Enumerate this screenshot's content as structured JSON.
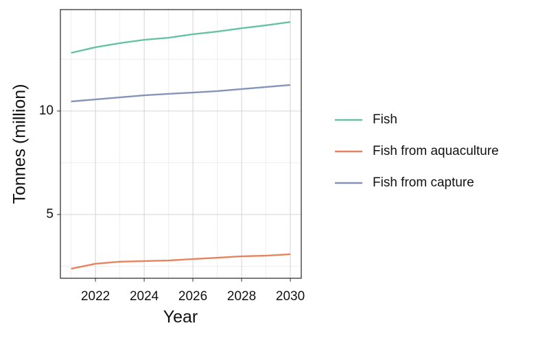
{
  "chart_data": {
    "type": "line",
    "x_label": "Year",
    "y_label": "Tonnes (million)",
    "x": [
      2021,
      2022,
      2023,
      2024,
      2025,
      2026,
      2027,
      2028,
      2029,
      2030
    ],
    "series": [
      {
        "name": "Fish",
        "color": "#66c2a5",
        "values": [
          12.81,
          13.08,
          13.28,
          13.44,
          13.54,
          13.71,
          13.84,
          14.0,
          14.14,
          14.3
        ]
      },
      {
        "name": "Fish from aquaculture",
        "color": "#e8825c",
        "values": [
          2.38,
          2.62,
          2.72,
          2.75,
          2.78,
          2.85,
          2.91,
          2.98,
          3.01,
          3.08
        ]
      },
      {
        "name": "Fish from capture",
        "color": "#8493b8",
        "values": [
          10.46,
          10.56,
          10.66,
          10.76,
          10.83,
          10.89,
          10.96,
          11.06,
          11.16,
          11.26
        ]
      }
    ],
    "xlim": [
      2020.56,
      2030.45
    ],
    "xticks": [
      2022,
      2024,
      2026,
      2028,
      2030
    ],
    "ylim": [
      1.92,
      14.9
    ],
    "yticks": [
      5,
      10
    ],
    "grid": true,
    "legend": "right"
  }
}
